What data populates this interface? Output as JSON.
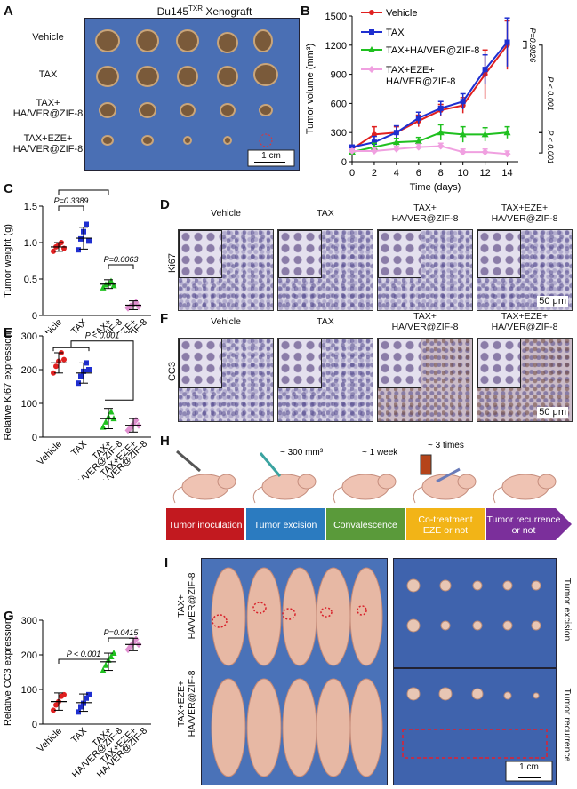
{
  "panel_labels": {
    "A": "A",
    "B": "B",
    "C": "C",
    "D": "D",
    "E": "E",
    "F": "F",
    "G": "G",
    "H": "H",
    "I": "I"
  },
  "panelA": {
    "title": "Du145",
    "title_sup": "TXR",
    "title_tail": " Xenograft",
    "rows": [
      "Vehicle",
      "TAX",
      "TAX+\nHA/VER@ZIF-8",
      "TAX+EZE+\nHA/VER@ZIF-8"
    ],
    "scale": "1 cm",
    "colors": {
      "background": "#4a6fb4"
    }
  },
  "panelD": {
    "row_label": "Ki67",
    "cols": [
      "Vehicle",
      "TAX",
      "TAX+\nHA/VER@ZIF-8",
      "TAX+EZE+\nHA/VER@ZIF-8"
    ],
    "scale": "50 μm"
  },
  "panelF": {
    "row_label": "CC3",
    "cols": [
      "Vehicle",
      "TAX",
      "TAX+\nHA/VER@ZIF-8",
      "TAX+EZE+\nHA/VER@ZIF-8"
    ],
    "scale": "50 μm"
  },
  "panelH": {
    "steps": [
      {
        "label": "Tumor inoculation",
        "color": "#c2191f"
      },
      {
        "label": "Tumor excision",
        "color": "#2b7bc0"
      },
      {
        "label": "Convalescence",
        "color": "#5a9a3a"
      },
      {
        "label": "Co-treatment\nEZE or not",
        "color": "#f2b417"
      },
      {
        "label": "Tumor recurrence\nor not",
        "color": "#7b2f9b"
      }
    ],
    "annotations": [
      "~ 300 mm³",
      "~ 1 week",
      "~ 3 times"
    ]
  },
  "panelI": {
    "row_labels": [
      "TAX+\nHA/VER@ZIF-8",
      "TAX+EZE+\nHA/VER@ZIF-8"
    ],
    "side_labels": [
      "Tumor excision",
      "Tumor recurrence"
    ],
    "scale": "1 cm"
  },
  "chart_data": [
    {
      "id": "B",
      "type": "line",
      "xlabel": "Time (days)",
      "ylabel": "Tumor volume (mm³)",
      "xlim": [
        0,
        15
      ],
      "ylim": [
        0,
        1500
      ],
      "xticks": [
        0,
        2,
        4,
        6,
        8,
        10,
        12,
        14
      ],
      "yticks": [
        0,
        300,
        600,
        900,
        1200,
        1500
      ],
      "x": [
        0,
        2,
        4,
        6,
        8,
        10,
        12,
        14
      ],
      "series": [
        {
          "name": "Vehicle",
          "color": "#e02020",
          "marker": "circle",
          "values": [
            130,
            280,
            300,
            420,
            530,
            580,
            900,
            1200
          ],
          "err": [
            30,
            80,
            60,
            60,
            60,
            80,
            250,
            250
          ]
        },
        {
          "name": "TAX",
          "color": "#1f2fd0",
          "marker": "square",
          "values": [
            150,
            200,
            300,
            450,
            550,
            620,
            950,
            1230
          ],
          "err": [
            20,
            60,
            70,
            60,
            70,
            80,
            150,
            250
          ]
        },
        {
          "name": "TAX+HA/VER@ZIF-8",
          "color": "#1fc01f",
          "marker": "triangle",
          "values": [
            100,
            150,
            200,
            210,
            300,
            280,
            280,
            300
          ],
          "err": [
            20,
            40,
            40,
            40,
            80,
            80,
            70,
            60
          ]
        },
        {
          "name": "TAX+EZE+\nHA/VER@ZIF-8",
          "color": "#f0a0e0",
          "marker": "diamond",
          "values": [
            110,
            110,
            130,
            150,
            160,
            100,
            100,
            80
          ],
          "err": [
            20,
            30,
            30,
            30,
            30,
            30,
            30,
            30
          ]
        }
      ],
      "annotations": [
        "P=0.9826",
        "P < 0.001",
        "P < 0.001"
      ]
    },
    {
      "id": "C",
      "type": "scatter",
      "ylabel": "Tumor weight (g)",
      "ylim": [
        0,
        1.5
      ],
      "yticks": [
        0,
        0.5,
        1.0,
        1.5
      ],
      "categories": [
        "Vehicle",
        "TAX",
        "TAX+\nHA/VER@ZIF-8",
        "TAX+EZE+\nHA/VER@ZIF-8"
      ],
      "colors": [
        "#e02020",
        "#1f2fd0",
        "#1fc01f",
        "#e090d0"
      ],
      "means": [
        0.94,
        1.06,
        0.43,
        0.14
      ],
      "sd": [
        0.06,
        0.15,
        0.06,
        0.06
      ],
      "points": [
        [
          0.88,
          0.94,
          0.97,
          1.0,
          0.92
        ],
        [
          0.9,
          1.05,
          1.15,
          1.25,
          1.02
        ],
        [
          0.38,
          0.42,
          0.44,
          0.47,
          0.41
        ],
        [
          0.1,
          0.13,
          0.15,
          0.18,
          0.12
        ]
      ],
      "annotations": [
        "P < 0.001",
        "P=0.3389",
        "P=0.0063"
      ]
    },
    {
      "id": "E",
      "type": "scatter",
      "ylabel": "Relative Ki67 expression",
      "ylim": [
        0,
        300
      ],
      "yticks": [
        0,
        100,
        200,
        300
      ],
      "categories": [
        "Vehicle",
        "TAX",
        "TAX+\nHA/VER@ZIF-8",
        "TAX+EZE+\nHA/VER@ZIF-8"
      ],
      "colors": [
        "#e02020",
        "#1f2fd0",
        "#1fc01f",
        "#e090d0"
      ],
      "means": [
        220,
        190,
        55,
        35
      ],
      "sd": [
        30,
        30,
        30,
        20
      ],
      "points": [
        [
          190,
          210,
          225,
          250,
          230
        ],
        [
          160,
          180,
          195,
          220,
          200
        ],
        [
          30,
          45,
          60,
          75,
          55
        ],
        [
          20,
          28,
          38,
          50,
          35
        ]
      ],
      "annotations": [
        "P < 0.001"
      ]
    },
    {
      "id": "G",
      "type": "scatter",
      "ylabel": "Relative CC3 expression",
      "ylim": [
        0,
        300
      ],
      "yticks": [
        0,
        100,
        200,
        300
      ],
      "categories": [
        "Vehicle",
        "TAX",
        "TAX+\nHA/VER@ZIF-8",
        "TAX+EZE+\nHA/VER@ZIF-8"
      ],
      "colors": [
        "#e02020",
        "#1f2fd0",
        "#1fc01f",
        "#e090d0"
      ],
      "means": [
        65,
        62,
        180,
        230
      ],
      "sd": [
        25,
        25,
        25,
        18
      ],
      "points": [
        [
          40,
          55,
          65,
          80,
          85
        ],
        [
          35,
          50,
          60,
          75,
          85
        ],
        [
          155,
          170,
          185,
          195,
          205
        ],
        [
          215,
          225,
          235,
          245,
          230
        ]
      ],
      "annotations": [
        "P < 0.001",
        "P=0.0415"
      ]
    }
  ]
}
